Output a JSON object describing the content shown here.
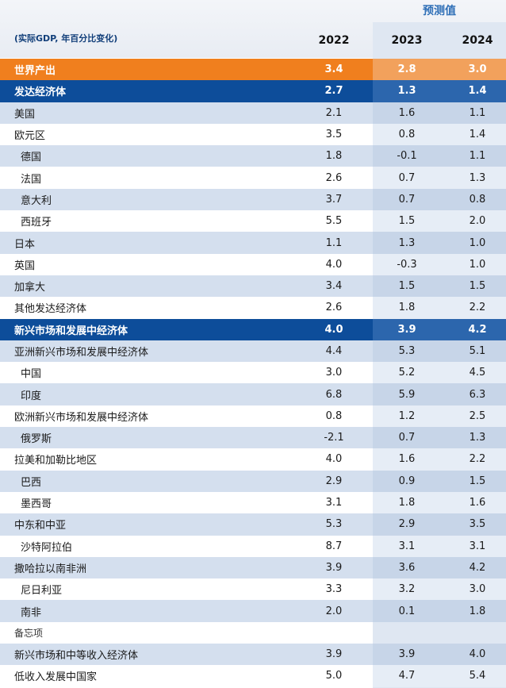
{
  "header": {
    "forecast_label": "预测值",
    "units": "(实际GDP, 年百分比变化)",
    "years": [
      "2022",
      "2023",
      "2024"
    ]
  },
  "rows": [
    {
      "label": "世界产出",
      "v2022": "3.4",
      "v2023": "2.8",
      "v2024": "3.0",
      "style": "world"
    },
    {
      "label": "发达经济体",
      "v2022": "2.7",
      "v2023": "1.3",
      "v2024": "1.4",
      "style": "adv"
    },
    {
      "label": "美国",
      "v2022": "2.1",
      "v2023": "1.6",
      "v2024": "1.1",
      "style": "shaded"
    },
    {
      "label": "欧元区",
      "v2022": "3.5",
      "v2023": "0.8",
      "v2024": "1.4",
      "style": "plain"
    },
    {
      "label": "德国",
      "v2022": "1.8",
      "v2023": "-0.1",
      "v2024": "1.1",
      "style": "shaded",
      "indent": true
    },
    {
      "label": "法国",
      "v2022": "2.6",
      "v2023": "0.7",
      "v2024": "1.3",
      "style": "plain",
      "indent": true
    },
    {
      "label": "意大利",
      "v2022": "3.7",
      "v2023": "0.7",
      "v2024": "0.8",
      "style": "shaded",
      "indent": true
    },
    {
      "label": "西班牙",
      "v2022": "5.5",
      "v2023": "1.5",
      "v2024": "2.0",
      "style": "plain",
      "indent": true
    },
    {
      "label": "日本",
      "v2022": "1.1",
      "v2023": "1.3",
      "v2024": "1.0",
      "style": "shaded"
    },
    {
      "label": "英国",
      "v2022": "4.0",
      "v2023": "-0.3",
      "v2024": "1.0",
      "style": "plain"
    },
    {
      "label": "加拿大",
      "v2022": "3.4",
      "v2023": "1.5",
      "v2024": "1.5",
      "style": "shaded"
    },
    {
      "label": "其他发达经济体",
      "v2022": "2.6",
      "v2023": "1.8",
      "v2024": "2.2",
      "style": "plain"
    },
    {
      "label": "新兴市场和发展中经济体",
      "v2022": "4.0",
      "v2023": "3.9",
      "v2024": "4.2",
      "style": "adv"
    },
    {
      "label": "亚洲新兴市场和发展中经济体",
      "v2022": "4.4",
      "v2023": "5.3",
      "v2024": "5.1",
      "style": "shaded"
    },
    {
      "label": "中国",
      "v2022": "3.0",
      "v2023": "5.2",
      "v2024": "4.5",
      "style": "plain",
      "indent": true
    },
    {
      "label": "印度",
      "v2022": "6.8",
      "v2023": "5.9",
      "v2024": "6.3",
      "style": "shaded",
      "indent": true
    },
    {
      "label": "欧洲新兴市场和发展中经济体",
      "v2022": "0.8",
      "v2023": "1.2",
      "v2024": "2.5",
      "style": "plain"
    },
    {
      "label": "俄罗斯",
      "v2022": "-2.1",
      "v2023": "0.7",
      "v2024": "1.3",
      "style": "shaded",
      "indent": true
    },
    {
      "label": "拉美和加勒比地区",
      "v2022": "4.0",
      "v2023": "1.6",
      "v2024": "2.2",
      "style": "plain"
    },
    {
      "label": "巴西",
      "v2022": "2.9",
      "v2023": "0.9",
      "v2024": "1.5",
      "style": "shaded",
      "indent": true
    },
    {
      "label": "墨西哥",
      "v2022": "3.1",
      "v2023": "1.8",
      "v2024": "1.6",
      "style": "plain",
      "indent": true
    },
    {
      "label": "中东和中亚",
      "v2022": "5.3",
      "v2023": "2.9",
      "v2024": "3.5",
      "style": "shaded"
    },
    {
      "label": "沙特阿拉伯",
      "v2022": "8.7",
      "v2023": "3.1",
      "v2024": "3.1",
      "style": "plain",
      "indent": true
    },
    {
      "label": "撒哈拉以南非洲",
      "v2022": "3.9",
      "v2023": "3.6",
      "v2024": "4.2",
      "style": "shaded"
    },
    {
      "label": "尼日利亚",
      "v2022": "3.3",
      "v2023": "3.2",
      "v2024": "3.0",
      "style": "plain",
      "indent": true
    },
    {
      "label": "南非",
      "v2022": "2.0",
      "v2023": "0.1",
      "v2024": "1.8",
      "style": "shaded",
      "indent": true
    },
    {
      "label": "备忘项",
      "v2022": "",
      "v2023": "",
      "v2024": "",
      "style": "memo"
    },
    {
      "label": "新兴市场和中等收入经济体",
      "v2022": "3.9",
      "v2023": "3.9",
      "v2024": "4.0",
      "style": "shaded"
    },
    {
      "label": "低收入发展中国家",
      "v2022": "5.0",
      "v2023": "4.7",
      "v2024": "5.4",
      "style": "plain"
    }
  ]
}
